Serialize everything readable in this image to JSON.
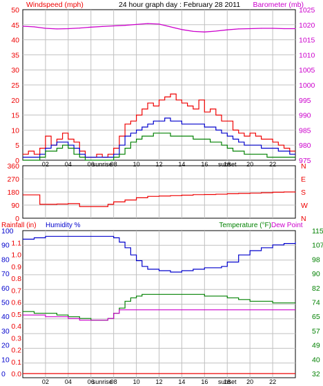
{
  "header": {
    "left_label": "Windspeed (mph)",
    "title": "24 hour graph day : February 28 2011",
    "right_label": "Barometer (mb)"
  },
  "colors": {
    "wind": "#ee0000",
    "blue": "#0000cc",
    "green": "#008000",
    "magenta": "#cc00cc",
    "grid": "#c0c0c0",
    "frame": "#000000",
    "background": "#ffffff"
  },
  "x_ticks": [
    "02",
    "04",
    "06",
    "08",
    "10",
    "12",
    "14",
    "16",
    "18",
    "20",
    "22"
  ],
  "sunrise_label": "sunrise",
  "sunset_label": "sunset",
  "chart_data": [
    {
      "type": "line",
      "panel": "wind-baro",
      "x_unit": "hour",
      "xlim": [
        0,
        24
      ],
      "left_axis": {
        "label": "Windspeed (mph)",
        "ylim": [
          0,
          50
        ],
        "ticks": [
          "0",
          "5",
          "10",
          "15",
          "20",
          "25",
          "30",
          "35",
          "40",
          "45",
          "50"
        ]
      },
      "right_axis": {
        "label": "Barometer (mb)",
        "ylim": [
          975,
          1025
        ],
        "ticks": [
          "975",
          "980",
          "985",
          "990",
          "995",
          "1000",
          "1005",
          "1010",
          "1015",
          "1020",
          "1025"
        ]
      },
      "series": [
        {
          "key": "gust",
          "color": "#ee0000",
          "axis": "left",
          "x": [
            0,
            0.5,
            1,
            1.5,
            2,
            2.5,
            3,
            3.5,
            4,
            4.5,
            5,
            5.5,
            6,
            6.5,
            7,
            7.5,
            8,
            8.5,
            9,
            9.5,
            10,
            10.5,
            11,
            11.5,
            12,
            12.5,
            13,
            13.5,
            14,
            14.5,
            15,
            15.5,
            16,
            16.5,
            17,
            17.5,
            18,
            18.5,
            19,
            19.5,
            20,
            20.5,
            21,
            21.5,
            22,
            22.5,
            23,
            23.5
          ],
          "values": [
            2,
            3,
            2,
            4,
            8,
            5,
            7,
            9,
            7,
            6,
            3,
            1,
            1,
            2,
            1,
            2,
            4,
            8,
            12,
            13,
            15,
            17,
            19,
            18,
            20,
            21,
            22,
            20,
            19,
            18,
            17,
            20,
            16,
            17,
            15,
            13,
            13,
            10,
            9,
            8,
            9,
            8,
            7,
            7,
            6,
            5,
            4,
            3
          ]
        },
        {
          "key": "average",
          "color": "#0000cc",
          "axis": "left",
          "x": [
            0,
            0.5,
            1,
            1.5,
            2,
            2.5,
            3,
            3.5,
            4,
            4.5,
            5,
            5.5,
            6,
            6.5,
            7,
            7.5,
            8,
            8.5,
            9,
            9.5,
            10,
            10.5,
            11,
            11.5,
            12,
            12.5,
            13,
            13.5,
            14,
            14.5,
            15,
            15.5,
            16,
            16.5,
            17,
            17.5,
            18,
            18.5,
            19,
            19.5,
            20,
            20.5,
            21,
            21.5,
            22,
            22.5,
            23,
            23.5
          ],
          "values": [
            1,
            1,
            1,
            2,
            4,
            5,
            6,
            6,
            5,
            4,
            2,
            1,
            1,
            1,
            1,
            1,
            2,
            5,
            8,
            9,
            10,
            11,
            12,
            13,
            13,
            14,
            13,
            13,
            12,
            12,
            12,
            12,
            11,
            11,
            10,
            9,
            8,
            7,
            6,
            5,
            5,
            5,
            4,
            4,
            4,
            3,
            3,
            2
          ]
        },
        {
          "key": "low",
          "color": "#008000",
          "axis": "left",
          "x": [
            0,
            0.5,
            1,
            1.5,
            2,
            2.5,
            3,
            3.5,
            4,
            4.5,
            5,
            5.5,
            6,
            6.5,
            7,
            7.5,
            8,
            8.5,
            9,
            9.5,
            10,
            10.5,
            11,
            11.5,
            12,
            12.5,
            13,
            13.5,
            14,
            14.5,
            15,
            15.5,
            16,
            16.5,
            17,
            17.5,
            18,
            18.5,
            19,
            19.5,
            20,
            20.5,
            21,
            21.5,
            22,
            22.5,
            23,
            23.5
          ],
          "values": [
            0,
            0,
            0,
            1,
            3,
            3,
            4,
            5,
            4,
            2,
            1,
            0,
            0,
            0,
            0,
            0,
            1,
            2,
            4,
            6,
            7,
            8,
            8,
            9,
            9,
            9,
            8,
            8,
            8,
            8,
            7,
            7,
            7,
            6,
            6,
            5,
            4,
            3,
            3,
            2,
            2,
            2,
            2,
            1,
            1,
            1,
            1,
            1
          ]
        },
        {
          "key": "barometer",
          "color": "#cc00cc",
          "axis": "right",
          "x": [
            0,
            1,
            2,
            3,
            4,
            5,
            6,
            7,
            8,
            9,
            10,
            11,
            12,
            13,
            14,
            15,
            16,
            17,
            18,
            19,
            20,
            21,
            22,
            23,
            24
          ],
          "values": [
            1019.5,
            1019.3,
            1018.8,
            1018.6,
            1018.7,
            1018.9,
            1019.2,
            1019.4,
            1019.6,
            1019.8,
            1020.1,
            1020.4,
            1020.2,
            1019.3,
            1018.4,
            1017.8,
            1017.6,
            1017.9,
            1018.3,
            1018.6,
            1018.7,
            1018.8,
            1018.8,
            1018.7,
            1018.7
          ]
        }
      ]
    },
    {
      "type": "line",
      "panel": "wind-direction",
      "x_unit": "hour",
      "xlim": [
        0,
        24
      ],
      "left_axis": {
        "ylim": [
          0,
          360
        ],
        "ticks": [
          "0",
          "90",
          "180",
          "270",
          "360"
        ]
      },
      "right_axis": {
        "ticks": [
          "N",
          "W",
          "S",
          "E",
          "N"
        ]
      },
      "series": [
        {
          "key": "direction",
          "color": "#ee0000",
          "x": [
            0,
            1,
            1.5,
            2,
            3,
            4,
            5,
            6,
            7,
            7.5,
            8,
            9,
            10,
            11,
            12,
            13,
            14,
            15,
            16,
            17,
            18,
            19,
            20,
            21,
            22,
            23,
            24
          ],
          "values": [
            160,
            160,
            95,
            95,
            97,
            100,
            80,
            80,
            80,
            95,
            112,
            125,
            140,
            150,
            152,
            155,
            158,
            162,
            163,
            165,
            168,
            170,
            172,
            175,
            178,
            180,
            182
          ]
        }
      ]
    },
    {
      "type": "line",
      "panel": "rain-humidity-temp",
      "x_unit": "hour",
      "xlim": [
        0,
        24
      ],
      "left_axis_1": {
        "label": "Rainfall (in)",
        "ylim": [
          0,
          1.2
        ],
        "ticks": [
          "0.0",
          "0.1",
          "0.2",
          "0.3",
          "0.4",
          "0.5",
          "0.6",
          "0.7",
          "0.8",
          "0.9",
          "1.0",
          "1.1"
        ]
      },
      "left_axis_2": {
        "label": "Humidity %",
        "ylim": [
          0,
          100
        ],
        "ticks": [
          "0",
          "10",
          "20",
          "30",
          "40",
          "50",
          "60",
          "70",
          "80",
          "90",
          "100"
        ]
      },
      "right_axis": {
        "label": "Temperature (°F)",
        "ylim": [
          32,
          115
        ],
        "ticks": [
          "32",
          "40",
          "49",
          "57",
          "65",
          "74",
          "82",
          "90",
          "98",
          "107",
          "115"
        ]
      },
      "right_label_2": "Dew Point",
      "series": [
        {
          "key": "rainfall",
          "color": "#ee0000",
          "axis": "rain",
          "x": [
            0,
            24
          ],
          "values": [
            0.0,
            0.0
          ]
        },
        {
          "key": "humidity",
          "color": "#0000cc",
          "axis": "humidity",
          "x": [
            0,
            1,
            2,
            3,
            4,
            5,
            6,
            7,
            8,
            8.5,
            9,
            9.5,
            10,
            10.5,
            11,
            12,
            13,
            14,
            15,
            16,
            17,
            17.5,
            18,
            19,
            20,
            21,
            22,
            23,
            24
          ],
          "values": [
            94,
            95,
            96,
            96,
            96,
            96,
            96,
            96,
            95,
            92,
            88,
            83,
            79,
            75,
            73,
            72,
            71,
            72,
            73,
            74,
            74,
            75,
            78,
            83,
            86,
            88,
            90,
            91,
            92
          ]
        },
        {
          "key": "temperature",
          "color": "#008000",
          "axis": "temp",
          "x": [
            0,
            1,
            2,
            3,
            4,
            5,
            6,
            7,
            7.5,
            8,
            8.5,
            9,
            9.5,
            10,
            10.5,
            11,
            12,
            13,
            14,
            15,
            16,
            17,
            18,
            19,
            20,
            21,
            22,
            23,
            24
          ],
          "values": [
            68,
            67,
            67,
            66,
            65,
            64,
            63,
            63,
            64,
            67,
            70,
            74,
            76,
            77,
            78,
            78,
            78,
            78,
            78,
            78,
            77,
            77,
            76,
            75,
            74,
            74,
            73,
            73,
            73
          ]
        },
        {
          "key": "dewpoint",
          "color": "#cc00cc",
          "axis": "temp",
          "x": [
            0,
            1,
            2,
            3,
            4,
            5,
            6,
            7,
            7.5,
            8,
            8.5,
            9,
            10,
            11,
            12,
            13,
            14,
            15,
            16,
            17,
            18,
            19,
            20,
            21,
            22,
            23,
            24
          ],
          "values": [
            66,
            66,
            65,
            65,
            64,
            63,
            63,
            63,
            64,
            67,
            69,
            69,
            69,
            69,
            69,
            69,
            69,
            69,
            69,
            69,
            69,
            69,
            69,
            69,
            69,
            69,
            69
          ]
        }
      ]
    }
  ]
}
